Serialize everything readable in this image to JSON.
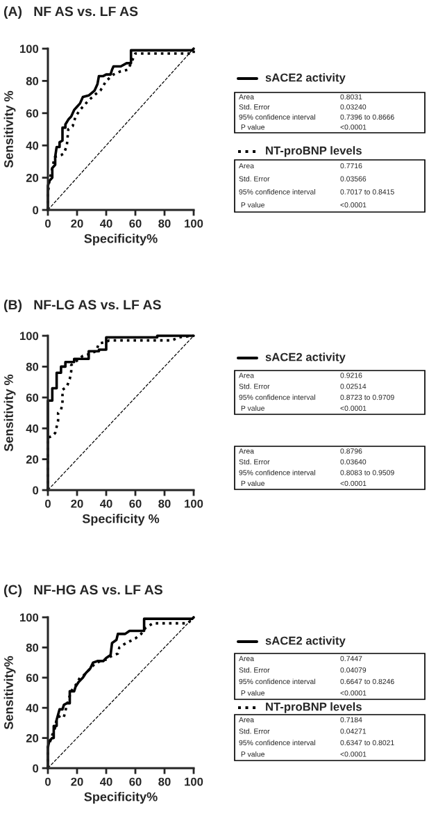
{
  "chart_data": [
    {
      "type": "line",
      "title": "(A)   NF AS vs. LF AS",
      "xlabel": "Specificity%",
      "ylabel": "Sensitivity %",
      "xlim": [
        0,
        100
      ],
      "ylim": [
        0,
        100
      ],
      "xticks": [
        0,
        20,
        40,
        60,
        80,
        100
      ],
      "yticks": [
        0,
        20,
        40,
        60,
        80,
        100
      ],
      "grid": false,
      "legend": "right",
      "series": [
        {
          "name": "sACE2 activity",
          "color": "#000000",
          "line_style": "solid",
          "x": [
            0,
            0,
            1,
            3,
            3,
            5,
            5,
            6,
            8,
            8,
            10,
            10,
            12,
            12,
            14,
            16,
            18,
            20,
            22,
            24,
            28,
            32,
            34,
            35,
            38,
            40,
            43,
            44,
            45,
            50,
            54,
            57,
            57,
            99,
            100
          ],
          "values": [
            0,
            15,
            18,
            20,
            26,
            28,
            33,
            39,
            39,
            42,
            43,
            51,
            51,
            53,
            56,
            58,
            62,
            64,
            66,
            70,
            71,
            74,
            78,
            83,
            83,
            84,
            84,
            87,
            89,
            89,
            91,
            91,
            99,
            99,
            100
          ]
        },
        {
          "name": "NT-proBNP levels",
          "color": "#000000",
          "line_style": "dotted",
          "x": [
            0,
            0,
            1,
            2,
            4,
            5,
            9,
            11,
            13,
            14,
            17,
            19,
            22,
            26,
            28,
            33,
            36,
            38,
            40,
            45,
            50,
            55,
            56,
            58,
            60,
            100,
            100
          ],
          "values": [
            0,
            10,
            18,
            22,
            30,
            33,
            34,
            35,
            40,
            50,
            52,
            58,
            62,
            66,
            68,
            72,
            74,
            77,
            80,
            84,
            86,
            87,
            89,
            93,
            97,
            97,
            100
          ]
        },
        {
          "color": "#000000",
          "line_style": "dashed",
          "x": [
            0,
            100
          ],
          "values": [
            0,
            100
          ]
        }
      ],
      "annotations": [
        "Area",
        "0.8031",
        "Std. Error",
        "0.03240",
        "95% confidence interval",
        "0.7396 to 0.8666",
        " P value",
        "<0.0001",
        "Area",
        "0.7716",
        "Std. Error",
        "0.03566",
        "95% confidence interval",
        "0.7017 to 0.8415",
        " P value",
        "<0.0001"
      ]
    },
    {
      "type": "line",
      "title": "(B)   NF-LG AS vs. LF AS",
      "xlabel": "Specificity %",
      "ylabel": "Sensitivity %",
      "xlim": [
        0,
        100
      ],
      "ylim": [
        0,
        100
      ],
      "xticks": [
        0,
        20,
        40,
        60,
        80,
        100
      ],
      "yticks": [
        0,
        20,
        40,
        60,
        80,
        100
      ],
      "grid": false,
      "legend": "right",
      "series": [
        {
          "name": "sACE2 activity",
          "color": "#000000",
          "line_style": "solid",
          "x": [
            0,
            0,
            3,
            3,
            6,
            6,
            9,
            9,
            12,
            12,
            18,
            18,
            28,
            28,
            35,
            35,
            40,
            40,
            75,
            75,
            100
          ],
          "values": [
            0,
            58,
            58,
            66,
            66,
            76,
            76,
            80,
            80,
            83,
            83,
            85,
            85,
            90,
            90,
            91,
            91,
            99,
            99,
            100,
            100
          ]
        },
        {
          "color": "#000000",
          "line_style": "dotted",
          "x": [
            0,
            0,
            3,
            5,
            7,
            7,
            9,
            10,
            10,
            13,
            15,
            16,
            16,
            20,
            24,
            28,
            33,
            35,
            40,
            42,
            85,
            90,
            100
          ],
          "values": [
            0,
            34,
            35,
            37,
            45,
            50,
            52,
            56,
            65,
            67,
            72,
            77,
            81,
            84,
            87,
            88,
            90,
            95,
            96,
            97,
            97,
            99,
            100
          ]
        },
        {
          "color": "#000000",
          "line_style": "dashed",
          "x": [
            0,
            100
          ],
          "values": [
            0,
            100
          ]
        }
      ],
      "annotations": [
        "Area",
        "0.9216",
        "Std. Error",
        "0.02514",
        "95% confidence interval",
        "0.8723 to 0.9709",
        " P value",
        "<0.0001",
        "Area",
        "0.8796",
        "Std. Error",
        "0.03640",
        "95% confidence interval",
        "0.8083 to 0.9509",
        " P value",
        "<0.0001"
      ]
    },
    {
      "type": "line",
      "title": "(C)   NF-HG AS vs. LF AS",
      "xlabel": "Specificity%",
      "ylabel": "Sensitivity%",
      "xlim": [
        0,
        100
      ],
      "ylim": [
        0,
        100
      ],
      "xticks": [
        0,
        20,
        40,
        60,
        80,
        100
      ],
      "yticks": [
        0,
        20,
        40,
        60,
        80,
        100
      ],
      "grid": false,
      "legend": "right",
      "series": [
        {
          "name": "sACE2 activity",
          "color": "#000000",
          "line_style": "solid",
          "x": [
            0,
            0,
            1,
            3,
            4,
            4,
            6,
            6,
            8,
            10,
            11,
            13,
            15,
            15,
            18,
            19,
            21,
            24,
            26,
            29,
            31,
            34,
            38,
            40,
            43,
            44,
            47,
            48,
            53,
            56,
            60,
            66,
            66,
            99,
            100
          ],
          "values": [
            0,
            14,
            18,
            20,
            20,
            28,
            28,
            32,
            39,
            39,
            42,
            43,
            43,
            51,
            51,
            54,
            57,
            60,
            63,
            66,
            70,
            71,
            71,
            73,
            75,
            83,
            85,
            89,
            89,
            91,
            91,
            91,
            99,
            99,
            100
          ]
        },
        {
          "name": "NT-proBNP levels",
          "color": "#000000",
          "line_style": "dotted",
          "x": [
            0,
            0,
            2,
            3,
            5,
            6,
            9,
            11,
            12,
            14,
            16,
            19,
            22,
            24,
            27,
            29,
            32,
            36,
            40,
            43,
            48,
            49,
            52,
            56,
            60,
            64,
            67,
            72,
            96,
            100
          ],
          "values": [
            0,
            14,
            19,
            22,
            27,
            33,
            35,
            34,
            38,
            45,
            51,
            55,
            60,
            61,
            64,
            66,
            69,
            71,
            72,
            74,
            76,
            80,
            82,
            84,
            86,
            89,
            93,
            96,
            96,
            100
          ]
        },
        {
          "color": "#000000",
          "line_style": "dashed",
          "x": [
            0,
            100
          ],
          "values": [
            0,
            100
          ]
        }
      ],
      "annotations": [
        "Area",
        "0.7447",
        "Std. Error",
        "0.04079",
        "95% confidence interval",
        "0.6647 to 0.8246",
        " P value",
        "<0.0001",
        "Area",
        "0.7184",
        "Std. Error",
        "0.04271",
        "95% confidence interval",
        "0.6347 to 0.8021",
        " P value",
        "<0.0001"
      ]
    }
  ]
}
